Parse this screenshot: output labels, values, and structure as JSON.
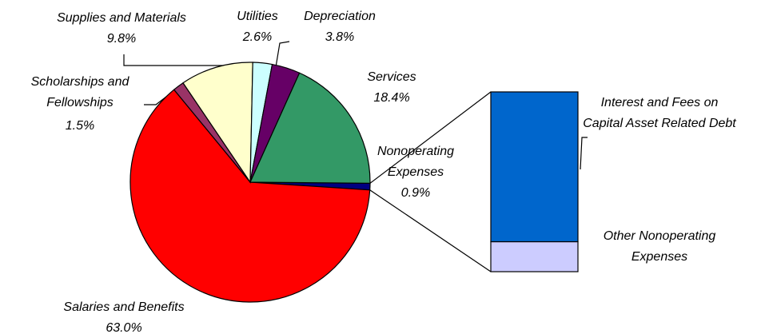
{
  "chart_data": {
    "type": "pie-of-bar",
    "categories": [
      "Nonoperating Expenses",
      "Salaries and Benefits",
      "Scholarships and Fellowships",
      "Supplies and Materials",
      "Utilities",
      "Depreciation",
      "Services"
    ],
    "values": [
      0.9,
      63.0,
      1.5,
      9.8,
      2.6,
      3.8,
      18.4
    ],
    "value_labels": [
      "0.9%",
      "63.0%",
      "1.5%",
      "9.8%",
      "2.6%",
      "3.8%",
      "18.4%"
    ],
    "colors": [
      "#000080",
      "#ff0000",
      "#993366",
      "#ffffcc",
      "#ccffff",
      "#660066",
      "#339966"
    ],
    "breakdown": {
      "categories": [
        "Other Nonoperating Expenses",
        "Interest and Fees on Capital Asset Related Debt"
      ],
      "values": [
        0.15,
        0.75
      ],
      "colors": [
        "#ccccff",
        "#0066cc"
      ]
    }
  }
}
